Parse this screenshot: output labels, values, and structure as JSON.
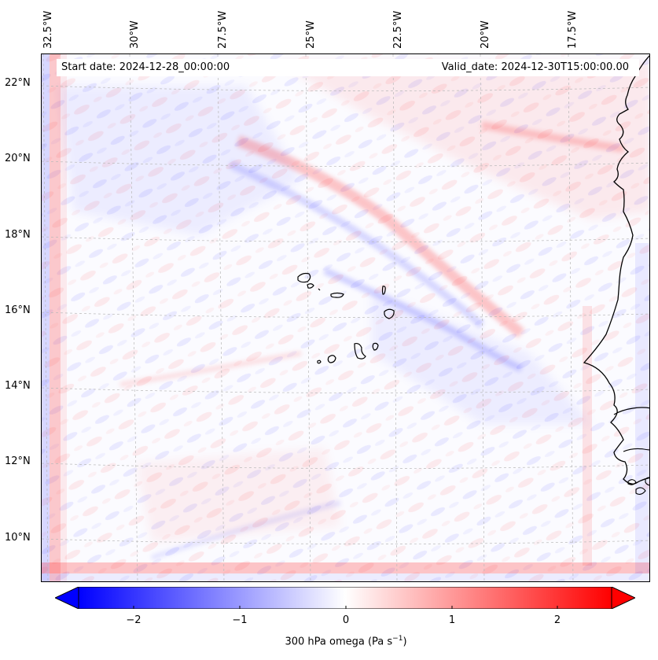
{
  "header": {
    "start_date": "Start date: 2024-12-28_00:00:00",
    "valid_date": "Valid_date: 2024-12-30T15:00:00.00"
  },
  "map": {
    "longitude_labels": [
      "32.5°W",
      "30°W",
      "27.5°W",
      "25°W",
      "22.5°W",
      "20°W",
      "17.5°W"
    ],
    "latitude_labels": [
      "22°N",
      "20°N",
      "18°N",
      "16°N",
      "14°N",
      "12°N",
      "10°N"
    ]
  },
  "colorbar": {
    "label_main": "300 hPa omega (Pa s",
    "label_exp": "−1",
    "label_end": ")",
    "ticks": [
      "−2",
      "−1",
      "0",
      "1",
      "2"
    ],
    "range": [
      -2.6,
      2.6
    ],
    "neg_color": "#0000ff",
    "pos_color": "#ff0000"
  },
  "colors": {
    "neg": "#0000ff",
    "pos": "#ff0000",
    "coast": "#000000"
  }
}
